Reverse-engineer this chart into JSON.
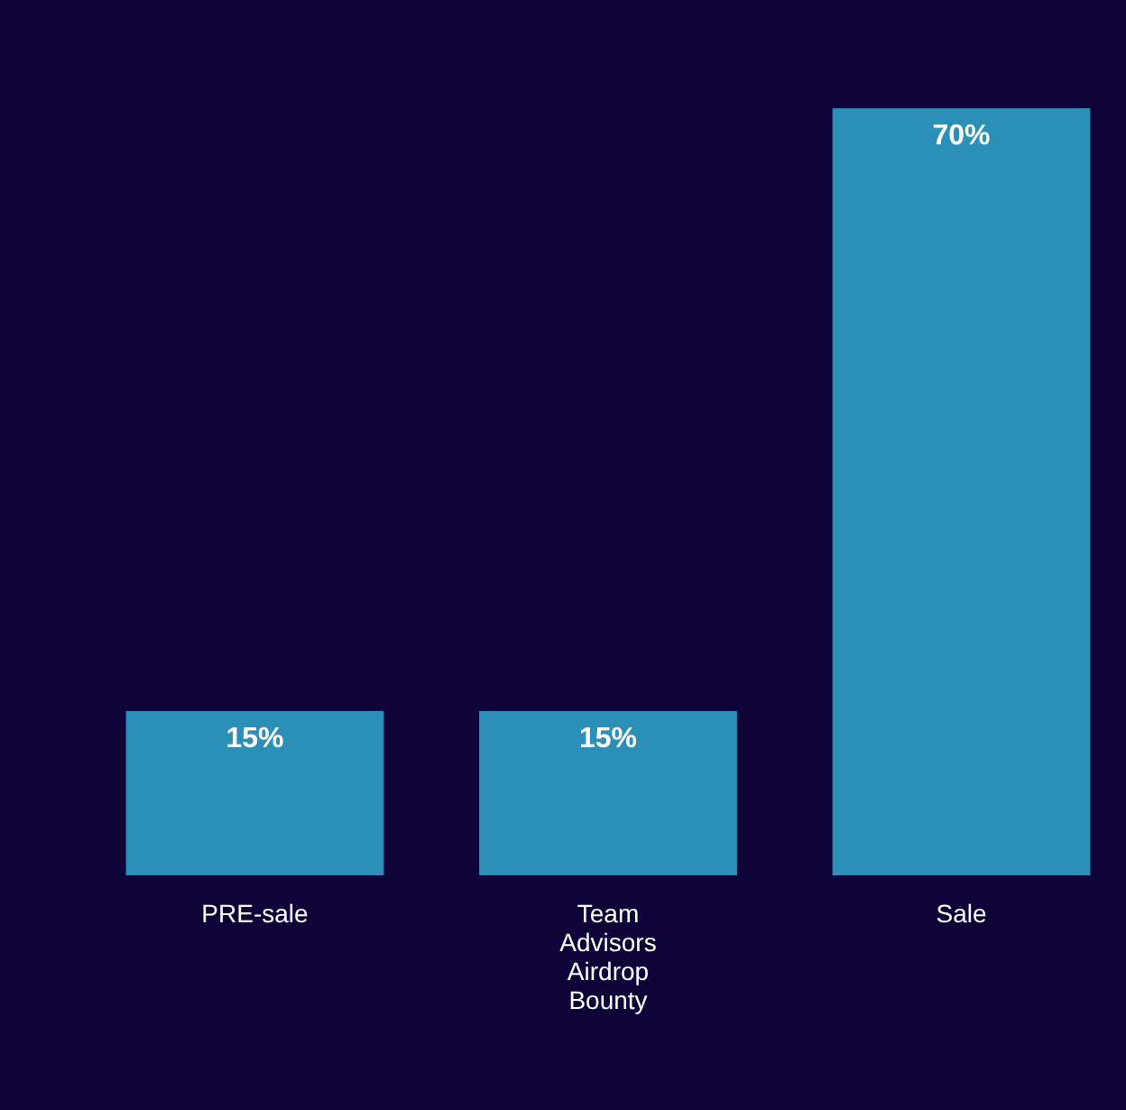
{
  "chart_data": {
    "type": "bar",
    "categories": [
      "PRE-sale",
      "Team\nAdvisors\nAirdrop\nBounty",
      "Sale"
    ],
    "values": [
      15,
      15,
      70
    ],
    "value_labels": [
      "15%",
      "15%",
      "70%"
    ],
    "color": "#2b8fb8"
  }
}
